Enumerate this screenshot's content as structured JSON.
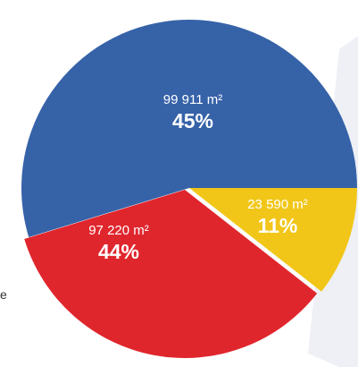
{
  "chart_data": {
    "type": "pie",
    "slices": [
      {
        "value_label": "99 911 m²",
        "percent_label": "45%",
        "percent": 45,
        "color": "#3662a8"
      },
      {
        "value_label": "23 590 m²",
        "percent_label": "11%",
        "percent": 11,
        "color": "#f1c618"
      },
      {
        "value_label": "97 220 m²",
        "percent_label": "44%",
        "percent": 44,
        "color": "#e0262d"
      }
    ]
  },
  "decor": {
    "background_shape_color": "#eef0f6"
  },
  "page": {
    "edge_text": "e"
  }
}
